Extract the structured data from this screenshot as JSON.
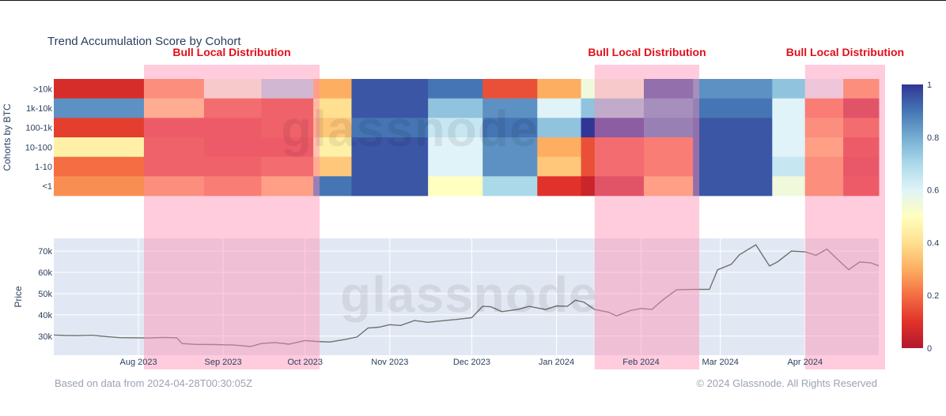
{
  "title": "Trend Accumulation Score by Cohort",
  "annotation_label": "Bull Local Distribution",
  "watermark": "glassnode",
  "footer": {
    "left": "Based on data from 2024-04-28T00:30:05Z",
    "right": "© 2024 Glassnode. All Rights Reserved"
  },
  "colors": {
    "highlight": "#ff8fb4",
    "annotation": "#e0101a",
    "price_panel_bg": "#e2e8f3",
    "price_line": "#707070",
    "text": "#2a3f5f",
    "colorscale": [
      "#b2182b",
      "#e0322a",
      "#f46d43",
      "#fdae61",
      "#fee090",
      "#ffffbf",
      "#e0f3f8",
      "#abd9e9",
      "#74add1",
      "#4575b4",
      "#313695"
    ]
  },
  "chart_data": [
    {
      "type": "heatmap",
      "title": "Trend Accumulation Score by Cohort",
      "ylabel": "Cohorts by BTC",
      "rows": [
        ">10k",
        "1k-10k",
        "100-1k",
        "10-100",
        "1-10",
        "<1"
      ],
      "colorbar": {
        "min": 0,
        "max": 1,
        "ticks": [
          "0",
          "0.2",
          "0.4",
          "0.6",
          "0.8",
          "1"
        ]
      },
      "x_range": [
        "2023-07-01",
        "2024-04-28"
      ],
      "segments": [
        {
          "from": "2023-07-01",
          "to": "2023-08-03",
          "values": [
            0.08,
            0.85,
            0.12,
            0.45,
            0.2,
            0.25
          ]
        },
        {
          "from": "2023-08-03",
          "to": "2023-08-25",
          "values": [
            0.25,
            0.35,
            0.1,
            0.12,
            0.12,
            0.25
          ]
        },
        {
          "from": "2023-08-25",
          "to": "2023-09-15",
          "values": [
            0.55,
            0.15,
            0.1,
            0.1,
            0.12,
            0.2
          ]
        },
        {
          "from": "2023-09-15",
          "to": "2023-10-04",
          "values": [
            0.7,
            0.12,
            0.12,
            0.1,
            0.15,
            0.3
          ]
        },
        {
          "from": "2023-10-04",
          "to": "2023-10-18",
          "values": [
            0.3,
            0.4,
            0.35,
            0.45,
            0.35,
            0.9
          ]
        },
        {
          "from": "2023-10-18",
          "to": "2023-11-15",
          "values": [
            0.95,
            0.95,
            0.9,
            0.95,
            0.95,
            0.95
          ]
        },
        {
          "from": "2023-11-15",
          "to": "2023-12-05",
          "values": [
            0.9,
            0.75,
            0.65,
            0.6,
            0.6,
            0.5
          ]
        },
        {
          "from": "2023-12-05",
          "to": "2023-12-25",
          "values": [
            0.15,
            0.85,
            0.9,
            0.85,
            0.85,
            0.7
          ]
        },
        {
          "from": "2023-12-25",
          "to": "2024-01-10",
          "values": [
            0.3,
            0.6,
            0.75,
            0.3,
            0.35,
            0.1
          ]
        },
        {
          "from": "2024-01-10",
          "to": "2024-02-02",
          "values": [
            0.55,
            0.75,
            1.0,
            0.15,
            0.15,
            0.05
          ]
        },
        {
          "from": "2024-02-02",
          "to": "2024-02-20",
          "values": [
            0.95,
            0.85,
            0.9,
            0.2,
            0.2,
            0.3
          ]
        },
        {
          "from": "2024-02-20",
          "to": "2024-03-20",
          "values": [
            0.85,
            0.9,
            0.95,
            0.95,
            0.95,
            0.95
          ]
        },
        {
          "from": "2024-03-20",
          "to": "2024-04-01",
          "values": [
            0.75,
            0.6,
            0.6,
            0.6,
            0.65,
            0.55
          ]
        },
        {
          "from": "2024-04-01",
          "to": "2024-04-15",
          "values": [
            0.6,
            0.2,
            0.25,
            0.3,
            0.25,
            0.25
          ]
        },
        {
          "from": "2024-04-15",
          "to": "2024-04-28",
          "values": [
            0.25,
            0.05,
            0.15,
            0.1,
            0.08,
            0.1
          ]
        }
      ],
      "highlight_ranges": [
        [
          "2023-08-03",
          "2023-10-04"
        ],
        [
          "2024-01-15",
          "2024-02-20"
        ],
        [
          "2024-04-01",
          "2024-04-28"
        ]
      ]
    },
    {
      "type": "line",
      "ylabel": "Price",
      "x_ticks": [
        "Aug 2023",
        "Sep 2023",
        "Oct 2023",
        "Nov 2023",
        "Dec 2023",
        "Jan 2024",
        "Feb 2024",
        "Mar 2024",
        "Apr 2024"
      ],
      "x_tick_dates": [
        "2023-08-01",
        "2023-09-01",
        "2023-10-01",
        "2023-11-01",
        "2023-12-01",
        "2024-01-01",
        "2024-02-01",
        "2024-03-01",
        "2024-04-01"
      ],
      "y_ticks": [
        "30k",
        "40k",
        "50k",
        "60k",
        "70k"
      ],
      "y_tick_values": [
        30000,
        40000,
        50000,
        60000,
        70000
      ],
      "ylim": [
        21000,
        76000
      ],
      "series": [
        {
          "x": [
            "2023-07-01",
            "2023-07-05",
            "2023-07-10",
            "2023-07-15",
            "2023-07-20",
            "2023-07-25",
            "2023-07-31",
            "2023-08-05",
            "2023-08-10",
            "2023-08-15",
            "2023-08-17",
            "2023-08-22",
            "2023-08-29",
            "2023-09-01",
            "2023-09-05",
            "2023-09-11",
            "2023-09-15",
            "2023-09-20",
            "2023-09-25",
            "2023-10-01",
            "2023-10-05",
            "2023-10-10",
            "2023-10-16",
            "2023-10-20",
            "2023-10-24",
            "2023-10-28",
            "2023-11-01",
            "2023-11-05",
            "2023-11-10",
            "2023-11-15",
            "2023-11-20",
            "2023-11-25",
            "2023-12-01",
            "2023-12-05",
            "2023-12-08",
            "2023-12-12",
            "2023-12-18",
            "2023-12-22",
            "2023-12-28",
            "2024-01-01",
            "2024-01-05",
            "2024-01-08",
            "2024-01-11",
            "2024-01-15",
            "2024-01-20",
            "2024-01-23",
            "2024-01-28",
            "2024-02-01",
            "2024-02-05",
            "2024-02-09",
            "2024-02-14",
            "2024-02-20",
            "2024-02-26",
            "2024-02-29",
            "2024-03-05",
            "2024-03-08",
            "2024-03-14",
            "2024-03-19",
            "2024-03-22",
            "2024-03-27",
            "2024-04-01",
            "2024-04-05",
            "2024-04-09",
            "2024-04-13",
            "2024-04-17",
            "2024-04-21",
            "2024-04-25",
            "2024-04-28"
          ],
          "y": [
            30500,
            30300,
            30200,
            30400,
            29800,
            29300,
            29200,
            29100,
            29400,
            29200,
            26500,
            26100,
            26000,
            25900,
            25800,
            25100,
            26500,
            27000,
            26200,
            27900,
            27500,
            27200,
            28500,
            29600,
            33800,
            34200,
            35400,
            35000,
            37300,
            36500,
            37200,
            37800,
            38700,
            44000,
            43800,
            41500,
            42600,
            44000,
            42500,
            44200,
            44000,
            46900,
            46000,
            42500,
            41300,
            39500,
            42000,
            43000,
            42600,
            47100,
            51800,
            52000,
            52000,
            61200,
            63800,
            68300,
            73000,
            63000,
            65000,
            70000,
            69700,
            68000,
            71000,
            66000,
            61300,
            64900,
            64500,
            63100
          ]
        }
      ]
    }
  ]
}
